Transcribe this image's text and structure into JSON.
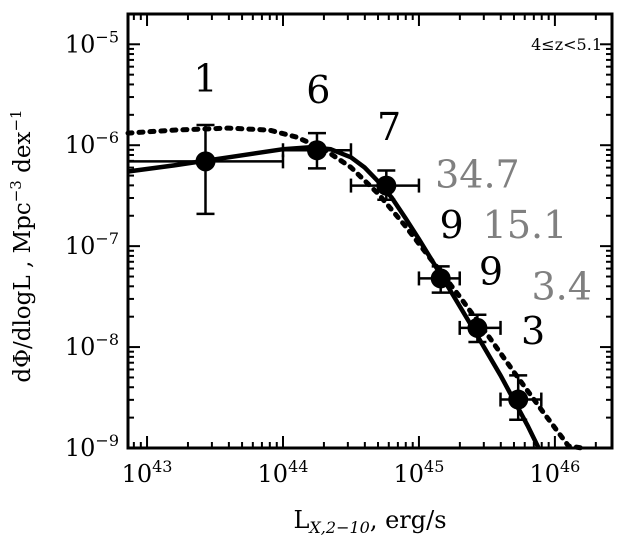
{
  "chart_data": {
    "type": "scatter",
    "annotation": "4≤z<5.1",
    "xlabel": {
      "main": "L",
      "sub": "X,2−10",
      "rest": ", erg/s"
    },
    "ylabel": {
      "text": "dΦ/dlogL , Mpc",
      "sup1": "−3",
      "mid": " dex",
      "sup2": "−1"
    },
    "x_scale": "log",
    "y_scale": "log",
    "xlim_log10": [
      42.86,
      46.42
    ],
    "ylim_log10": [
      -9,
      -4.7
    ],
    "x_ticks": [
      {
        "log10": 43,
        "base": "10",
        "exp": "43"
      },
      {
        "log10": 44,
        "base": "10",
        "exp": "44"
      },
      {
        "log10": 45,
        "base": "10",
        "exp": "45"
      },
      {
        "log10": 46,
        "base": "10",
        "exp": "46"
      }
    ],
    "y_ticks": [
      {
        "log10": -5,
        "base": "10",
        "exp": "−5"
      },
      {
        "log10": -6,
        "base": "10",
        "exp": "−6"
      },
      {
        "log10": -7,
        "base": "10",
        "exp": "−7"
      },
      {
        "log10": -8,
        "base": "10",
        "exp": "−8"
      },
      {
        "log10": -9,
        "base": "10",
        "exp": "−9"
      }
    ],
    "points": [
      {
        "x_log10": 43.43,
        "y_log10": -6.16,
        "x_err_log10": [
          42.86,
          44.0
        ],
        "y_err_log10": [
          -6.68,
          -5.8
        ],
        "count": "1",
        "count_pos_log10": [
          43.43,
          -5.47
        ]
      },
      {
        "x_log10": 44.25,
        "y_log10": -6.05,
        "x_err_log10": [
          44.0,
          44.5
        ],
        "y_err_log10": [
          -6.23,
          -5.88
        ],
        "count": "6",
        "count_pos_log10": [
          44.26,
          -5.58
        ]
      },
      {
        "x_log10": 44.76,
        "y_log10": -6.4,
        "x_err_log10": [
          44.5,
          45.0
        ],
        "y_err_log10": [
          -6.54,
          -6.25
        ],
        "count": "7",
        "count_pos_log10": [
          44.78,
          -5.95
        ]
      },
      {
        "x_log10": 45.16,
        "y_log10": -7.32,
        "x_err_log10": [
          45.0,
          45.3
        ],
        "y_err_log10": [
          -7.46,
          -7.2
        ],
        "count": "9",
        "count_pos_log10": [
          45.24,
          -6.92
        ]
      },
      {
        "x_log10": 45.43,
        "y_log10": -7.81,
        "x_err_log10": [
          45.3,
          45.6
        ],
        "y_err_log10": [
          -7.95,
          -7.68
        ],
        "count": "9",
        "count_pos_log10": [
          45.53,
          -7.38
        ]
      },
      {
        "x_log10": 45.73,
        "y_log10": -8.52,
        "x_err_log10": [
          45.6,
          45.9
        ],
        "y_err_log10": [
          -8.72,
          -8.28
        ],
        "count": "3",
        "count_pos_log10": [
          45.84,
          -7.97
        ]
      }
    ],
    "gray_labels": [
      {
        "text": "34.7",
        "pos_log10": [
          45.43,
          -6.42
        ]
      },
      {
        "text": "15.1",
        "pos_log10": [
          45.78,
          -6.92
        ]
      },
      {
        "text": "3.4",
        "pos_log10": [
          46.05,
          -7.53
        ]
      }
    ],
    "solid_model": {
      "x_log10": [
        42.86,
        43.2,
        43.6,
        44.0,
        44.2,
        44.35,
        44.5,
        44.6,
        44.7,
        44.8,
        44.9,
        45.0,
        45.1,
        45.2,
        45.4,
        45.6,
        45.8,
        45.88
      ],
      "y_log10": [
        -6.26,
        -6.2,
        -6.12,
        -6.04,
        -6.02,
        -6.04,
        -6.12,
        -6.22,
        -6.36,
        -6.52,
        -6.72,
        -6.93,
        -7.15,
        -7.37,
        -7.82,
        -8.28,
        -8.78,
        -9.0
      ]
    },
    "dotted_model": {
      "x_log10": [
        42.86,
        43.2,
        43.6,
        43.9,
        44.1,
        44.3,
        44.5,
        44.7,
        44.9,
        45.1,
        45.3,
        45.5,
        45.7,
        45.9,
        46.1,
        46.2
      ],
      "y_log10": [
        -5.88,
        -5.85,
        -5.83,
        -5.85,
        -5.92,
        -6.04,
        -6.22,
        -6.48,
        -6.8,
        -7.15,
        -7.5,
        -7.87,
        -8.25,
        -8.62,
        -8.98,
        -9.05
      ]
    },
    "colors": {
      "ink": "#000000",
      "gray_label": "#808080",
      "background": "#ffffff"
    }
  }
}
